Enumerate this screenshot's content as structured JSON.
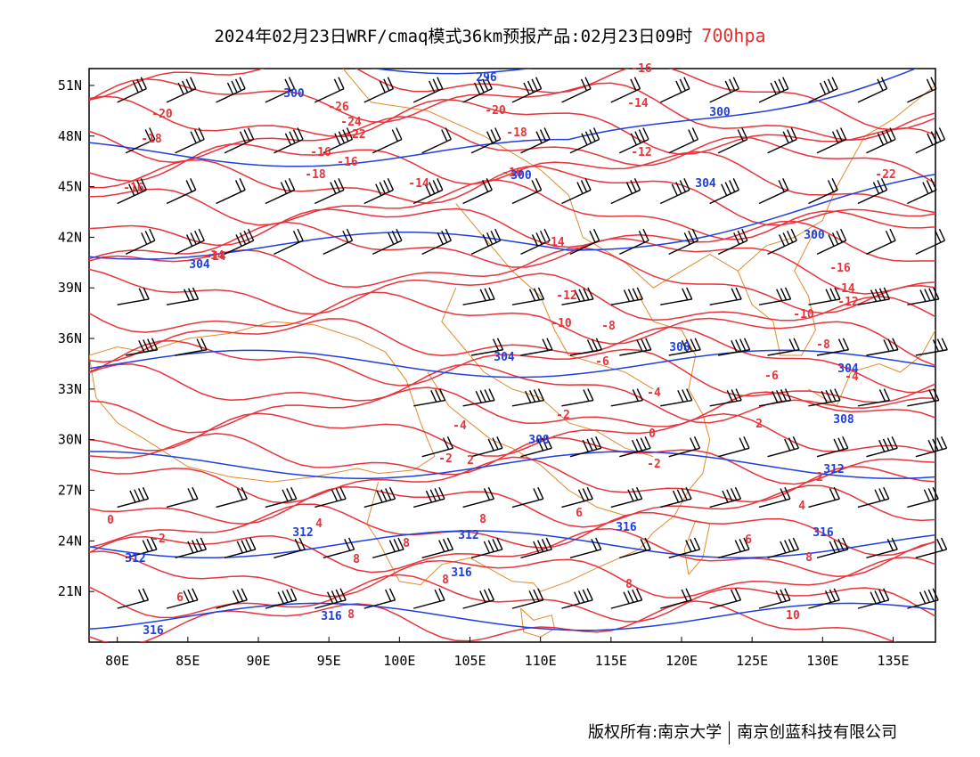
{
  "title": {
    "main": "2024年02月23日WRF/cmaq模式36km预报产品:02月23日09时",
    "level": "700hpa"
  },
  "copyright": {
    "owner": "版权所有:南京大学",
    "company": "南京创蓝科技有限公司"
  },
  "colors": {
    "temperature": "#e8333a",
    "height": "#1f3fe0",
    "border": "#e08a2c",
    "wind": "#000000",
    "level_title": "#e03030"
  },
  "map": {
    "lon_range": [
      78,
      138
    ],
    "lat_range": [
      18,
      52
    ],
    "x_ticks": [
      "80E",
      "85E",
      "90E",
      "95E",
      "100E",
      "105E",
      "110E",
      "115E",
      "120E",
      "125E",
      "130E",
      "135E"
    ],
    "x_tick_values": [
      80,
      85,
      90,
      95,
      100,
      105,
      110,
      115,
      120,
      125,
      130,
      135
    ],
    "y_ticks": [
      "51N",
      "48N",
      "45N",
      "42N",
      "39N",
      "36N",
      "33N",
      "30N",
      "27N",
      "24N",
      "21N"
    ],
    "y_tick_values": [
      51,
      48,
      45,
      42,
      39,
      36,
      33,
      30,
      27,
      24,
      21
    ],
    "temperature_labels": [
      "-26",
      "-24",
      "-22",
      "-20",
      "-18",
      "-16",
      "-14",
      "-12",
      "-10",
      "-8",
      "-6",
      "-4",
      "-2",
      "0",
      "2",
      "4",
      "6",
      "8",
      "10"
    ],
    "height_labels": [
      "296",
      "300",
      "304",
      "308",
      "312",
      "316"
    ]
  }
}
